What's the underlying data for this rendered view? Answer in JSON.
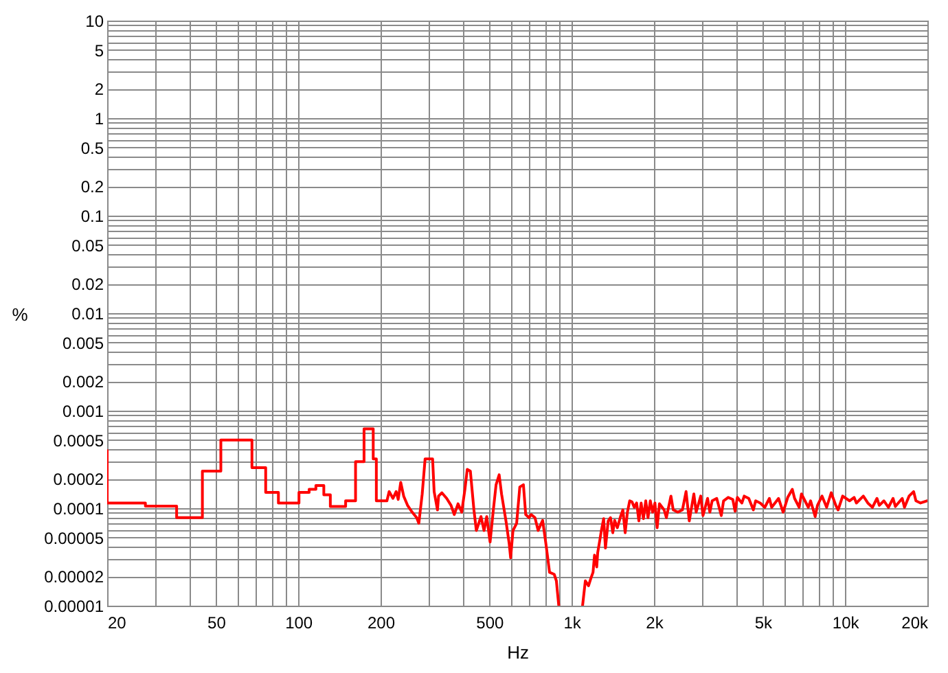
{
  "chart_data": {
    "type": "line",
    "xlabel": "Hz",
    "ylabel": "%",
    "color": "#ff0000",
    "log": "xy",
    "grid": true,
    "xlim": [
      20,
      20000
    ],
    "ylim": [
      1e-05,
      10
    ],
    "xticks": [
      20,
      {
        "value": 30,
        "label": null
      },
      {
        "value": 40,
        "label": null
      },
      50,
      {
        "value": 60,
        "label": null
      },
      {
        "value": 70,
        "label": null
      },
      {
        "value": 80,
        "label": null
      },
      {
        "value": 90,
        "label": null
      },
      100,
      200,
      {
        "value": 300,
        "label": null
      },
      {
        "value": 400,
        "label": null
      },
      500,
      {
        "value": 600,
        "label": null
      },
      {
        "value": 700,
        "label": null
      },
      {
        "value": 800,
        "label": null
      },
      {
        "value": 900,
        "label": null
      },
      {
        "value": 1000,
        "label": "1k"
      },
      {
        "value": 2000,
        "label": "2k"
      },
      {
        "value": 3000,
        "label": null
      },
      {
        "value": 4000,
        "label": null
      },
      {
        "value": 5000,
        "label": "5k"
      },
      {
        "value": 6000,
        "label": null
      },
      {
        "value": 7000,
        "label": null
      },
      {
        "value": 8000,
        "label": null
      },
      {
        "value": 9000,
        "label": null
      },
      {
        "value": 10000,
        "label": "10k"
      },
      {
        "value": 20000,
        "label": "20k"
      }
    ],
    "yticks": [
      {
        "value": 1e-05,
        "label": "0.00001"
      },
      {
        "value": 2e-05,
        "label": "0.00002"
      },
      {
        "value": 3e-05,
        "label": null
      },
      {
        "value": 4e-05,
        "label": null
      },
      {
        "value": 5e-05,
        "label": "0.00005"
      },
      {
        "value": 6e-05,
        "label": null
      },
      {
        "value": 7e-05,
        "label": null
      },
      {
        "value": 8e-05,
        "label": null
      },
      {
        "value": 9e-05,
        "label": null
      },
      0.0001,
      0.0002,
      {
        "value": 0.0003,
        "label": null
      },
      {
        "value": 0.0004,
        "label": null
      },
      0.0005,
      {
        "value": 0.0006,
        "label": null
      },
      {
        "value": 0.0007,
        "label": null
      },
      {
        "value": 0.0008,
        "label": null
      },
      {
        "value": 0.0009,
        "label": null
      },
      0.001,
      0.002,
      {
        "value": 0.003,
        "label": null
      },
      {
        "value": 0.004,
        "label": null
      },
      0.005,
      {
        "value": 0.006,
        "label": null
      },
      {
        "value": 0.007,
        "label": null
      },
      {
        "value": 0.008,
        "label": null
      },
      {
        "value": 0.009,
        "label": null
      },
      0.01,
      0.02,
      {
        "value": 0.03,
        "label": null
      },
      {
        "value": 0.04,
        "label": null
      },
      0.05,
      {
        "value": 0.06,
        "label": null
      },
      {
        "value": 0.07,
        "label": null
      },
      {
        "value": 0.08,
        "label": null
      },
      {
        "value": 0.09,
        "label": null
      },
      0.1,
      0.2,
      {
        "value": 0.3,
        "label": null
      },
      {
        "value": 0.4,
        "label": null
      },
      0.5,
      {
        "value": 0.6,
        "label": null
      },
      {
        "value": 0.7,
        "label": null
      },
      {
        "value": 0.8,
        "label": null
      },
      {
        "value": 0.9,
        "label": null
      },
      1,
      2,
      {
        "value": 3,
        "label": null
      },
      {
        "value": 4,
        "label": null
      },
      5,
      {
        "value": 6,
        "label": null
      },
      {
        "value": 7,
        "label": null
      },
      {
        "value": 8,
        "label": null
      },
      {
        "value": 9,
        "label": null
      },
      10
    ],
    "x": [
      20,
      20,
      27.6,
      27.6,
      35.9,
      35.9,
      44.6,
      44.6,
      52.1,
      52.1,
      67.7,
      67.7,
      76,
      76,
      84.6,
      84.6,
      100.6,
      100.6,
      109.6,
      109.6,
      116,
      116,
      124,
      124,
      131,
      131,
      149,
      149,
      162,
      162,
      174,
      174,
      188,
      188,
      193,
      193,
      211,
      215,
      222,
      228,
      232,
      237,
      243,
      251,
      261,
      271,
      276,
      284,
      291,
      310,
      314,
      323,
      326,
      335,
      349,
      362,
      372,
      384,
      396,
      407,
      415,
      426,
      439,
      448,
      466,
      478,
      489,
      503,
      517,
      529,
      543,
      554,
      575,
      591,
      598,
      610,
      629,
      646,
      666,
      679,
      698,
      711,
      734,
      754,
      783,
      805,
      830,
      863,
      879,
      897,
      1000,
      1096,
      1122,
      1152,
      1175,
      1197,
      1212,
      1235,
      1245,
      1269,
      1284,
      1309,
      1329,
      1360,
      1387,
      1414,
      1436,
      1469,
      1509,
      1539,
      1569,
      1599,
      1630,
      1662,
      1694,
      1728,
      1761,
      1795,
      1830,
      1866,
      1902,
      1939,
      1977,
      2016,
      2054,
      2094,
      2178,
      2220,
      2307,
      2352,
      2444,
      2541,
      2620,
      2692,
      2798,
      2853,
      2965,
      3022,
      3141,
      3202,
      3264,
      3392,
      3526,
      3594,
      3736,
      3883,
      3959,
      4036,
      4194,
      4276,
      4443,
      4618,
      4708,
      4893,
      5086,
      5286,
      5389,
      5710,
      5935,
      6168,
      6411,
      6536,
      6792,
      6925,
      7336,
      7480,
      7773,
      7925,
      8236,
      8561,
      8896,
      9247,
      9428,
      9798,
      10380,
      10790,
      11000,
      11660,
      12110,
      12590,
      13080,
      13340,
      13870,
      14410,
      14980,
      15270,
      16180,
      16490,
      17140,
      17810,
      18160,
      18880,
      20000
    ],
    "values": [
      0.00039,
      0.000113,
      0.000113,
      0.000105,
      0.000105,
      8e-05,
      8e-05,
      0.00024,
      0.00024,
      0.0005,
      0.0005,
      0.00026,
      0.00026,
      0.000145,
      0.000145,
      0.000113,
      0.000113,
      0.000145,
      0.000145,
      0.000156,
      0.000156,
      0.000171,
      0.000171,
      0.000137,
      0.000137,
      0.000104,
      0.000104,
      0.000119,
      0.000119,
      0.0003,
      0.0003,
      0.00065,
      0.00065,
      0.00032,
      0.00032,
      0.000119,
      0.000119,
      0.000148,
      0.000126,
      0.000148,
      0.000123,
      0.000184,
      0.000133,
      0.000107,
      9.1e-05,
      8e-05,
      7e-05,
      0.00014,
      0.00032,
      0.00032,
      0.000148,
      9.6e-05,
      0.000133,
      0.000144,
      0.000126,
      0.000107,
      8.6e-05,
      0.000111,
      9.1e-05,
      0.000156,
      0.00025,
      0.00024,
      9.6e-05,
      5.9e-05,
      8.2e-05,
      5.9e-05,
      8.2e-05,
      4.5e-05,
      9.6e-05,
      0.000174,
      0.00022,
      0.00014,
      7.4e-05,
      4.3e-05,
      3.1e-05,
      5.9e-05,
      7e-05,
      0.000165,
      0.000174,
      8.6e-05,
      8e-05,
      8.6e-05,
      8e-05,
      5.9e-05,
      7.5e-05,
      4.3e-05,
      2.2e-05,
      2.1e-05,
      1.8e-05,
      1e-05,
      null,
      1e-05,
      1.8e-05,
      1.6e-05,
      1.9e-05,
      2.2e-05,
      3.3e-05,
      2.5e-05,
      3.5e-05,
      4.8e-05,
      5.9e-05,
      7.8e-05,
      3.9e-05,
      7.4e-05,
      8e-05,
      5.6e-05,
      7.5e-05,
      6.3e-05,
      8.2e-05,
      9.6e-05,
      5.6e-05,
      9.1e-05,
      0.000119,
      0.000116,
      0.000102,
      0.000113,
      7.4e-05,
      0.000113,
      7.8e-05,
      0.000119,
      8e-05,
      0.000119,
      9.1e-05,
      0.000113,
      6.3e-05,
      0.000111,
      9.6e-05,
      8e-05,
      0.000133,
      9.6e-05,
      9.1e-05,
      9.6e-05,
      0.000148,
      7.4e-05,
      0.00014,
      9.1e-05,
      0.000133,
      8.4e-05,
      0.000126,
      9.1e-05,
      0.000119,
      0.000126,
      8.4e-05,
      0.000119,
      0.000129,
      0.000123,
      9.3e-05,
      0.000129,
      0.000113,
      0.000133,
      0.000126,
      9.6e-05,
      0.000119,
      0.000113,
      0.000102,
      0.000126,
      0.000102,
      0.000126,
      9.1e-05,
      0.000129,
      0.000156,
      0.000126,
      0.000102,
      0.00014,
      0.000102,
      0.000119,
      8.2e-05,
      0.000107,
      0.000133,
      0.000102,
      0.000144,
      0.000107,
      9.6e-05,
      0.000133,
      0.000119,
      0.000129,
      0.000113,
      0.000133,
      0.000113,
      0.000102,
      0.000126,
      0.000107,
      0.000119,
      0.000102,
      0.000126,
      0.000104,
      0.000126,
      0.000102,
      0.000133,
      0.000148,
      0.000119,
      0.000113,
      0.000119
    ]
  }
}
